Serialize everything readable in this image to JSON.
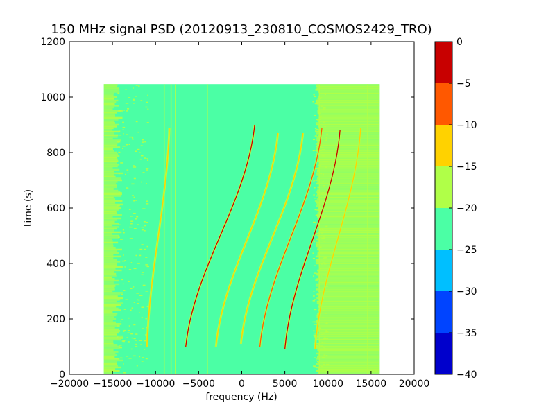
{
  "chart_data": {
    "type": "heatmap",
    "title": "150 MHz signal PSD (20120913_230810_COSMOS2429_TRO)",
    "xlabel": "frequency (Hz)",
    "ylabel": "time (s)",
    "xlim": [
      -20000,
      20000
    ],
    "ylim": [
      0,
      1200
    ],
    "xticks": [
      -20000,
      -15000,
      -10000,
      -5000,
      0,
      5000,
      10000,
      15000,
      20000
    ],
    "yticks": [
      0,
      200,
      400,
      600,
      800,
      1000,
      1200
    ],
    "grid": false,
    "data_extent": {
      "freq": [
        -16000,
        16000
      ],
      "time": [
        0,
        1047
      ]
    },
    "background_level_center": -22.5,
    "background_level_edges": -17.5,
    "colorbar": {
      "ticks": [
        0,
        -5,
        -10,
        -15,
        -20,
        -25,
        -30,
        -35,
        -40
      ],
      "levels": [
        {
          "range": [
            -40,
            -35
          ],
          "color": "#0000cc"
        },
        {
          "range": [
            -35,
            -30
          ],
          "color": "#0044ff"
        },
        {
          "range": [
            -30,
            -25
          ],
          "color": "#00bfff"
        },
        {
          "range": [
            -25,
            -20
          ],
          "color": "#4bffa5"
        },
        {
          "range": [
            -20,
            -15
          ],
          "color": "#b0ff48"
        },
        {
          "range": [
            -15,
            -10
          ],
          "color": "#ffd200"
        },
        {
          "range": [
            -10,
            -5
          ],
          "color": "#ff5800"
        },
        {
          "range": [
            -5,
            0
          ],
          "color": "#c80000"
        }
      ]
    },
    "doppler_traces": [
      {
        "freq_at_max_time": 1500,
        "start_time": 900,
        "freq_at_end": -6500,
        "end_time": 100,
        "peak_level": -3
      },
      {
        "freq_at_max_time": 4200,
        "start_time": 870,
        "freq_at_end": -3000,
        "end_time": 100,
        "peak_level": -10
      },
      {
        "freq_at_max_time": 7100,
        "start_time": 870,
        "freq_at_end": -100,
        "end_time": 110,
        "peak_level": -10
      },
      {
        "freq_at_max_time": 9300,
        "start_time": 890,
        "freq_at_end": 2100,
        "end_time": 100,
        "peak_level": -8
      },
      {
        "freq_at_max_time": 11400,
        "start_time": 880,
        "freq_at_end": 5000,
        "end_time": 90,
        "peak_level": -3
      },
      {
        "freq_at_max_time": 13800,
        "start_time": 890,
        "freq_at_end": 8500,
        "end_time": 90,
        "peak_level": -10
      },
      {
        "freq_at_max_time": -8400,
        "start_time": 890,
        "freq_at_end": -11000,
        "end_time": 100,
        "peak_level": -12
      }
    ],
    "vertical_lines": [
      {
        "freq": -9000,
        "level": -15
      },
      {
        "freq": -8200,
        "level": -15
      },
      {
        "freq": -7700,
        "level": -15
      },
      {
        "freq": -4000,
        "level": -15
      },
      {
        "freq": 9000,
        "level": -15
      },
      {
        "freq": 14600,
        "level": -17
      }
    ]
  }
}
